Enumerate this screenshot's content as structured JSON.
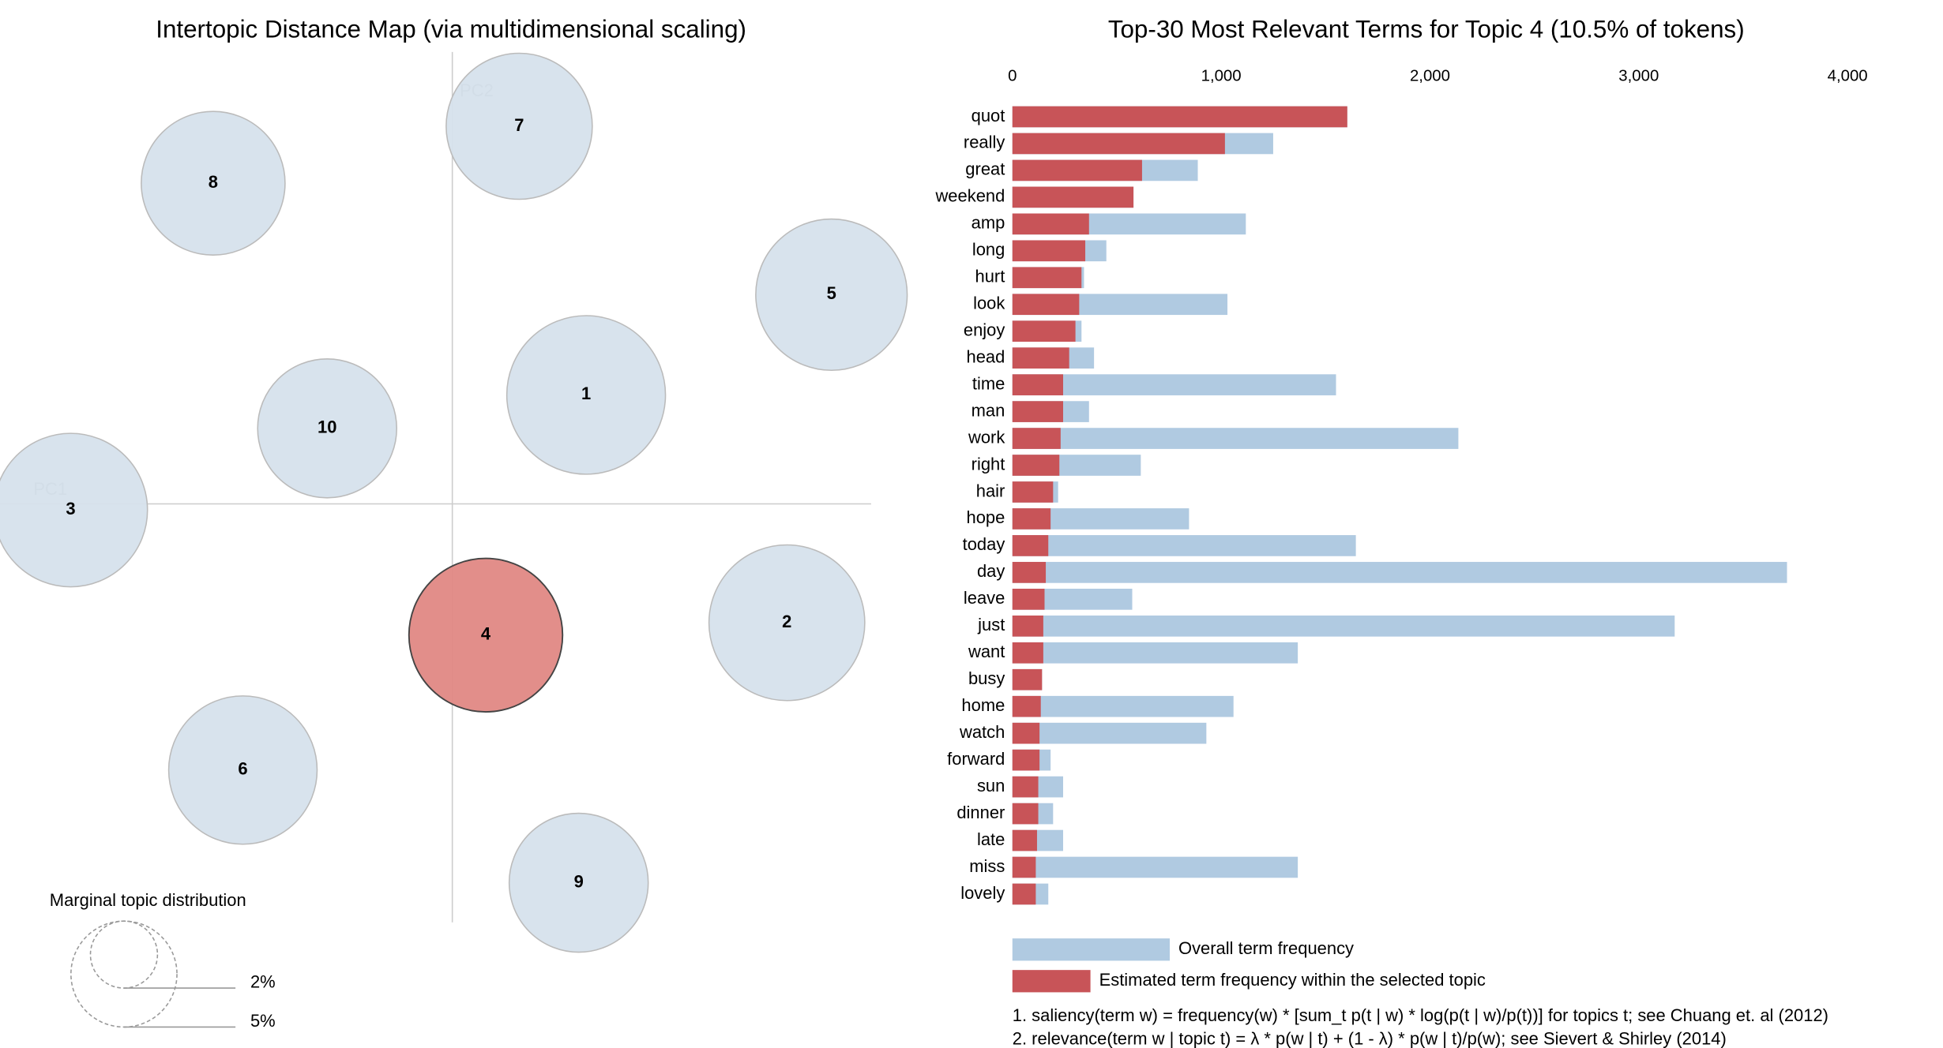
{
  "chart_data": [
    {
      "type": "scatter",
      "title": "Intertopic Distance Map (via multidimensional scaling)",
      "x_label": "PC1",
      "y_label": "PC2",
      "labels": [
        "7",
        "8",
        "5",
        "1",
        "10",
        "3",
        "4",
        "2",
        "6",
        "9"
      ],
      "x": [
        0.54,
        -1.93,
        3.06,
        1.08,
        -1.01,
        -3.08,
        0.27,
        2.7,
        -1.69,
        1.02
      ],
      "y": [
        3.05,
        2.59,
        1.69,
        0.88,
        0.61,
        -0.05,
        -1.06,
        -0.96,
        -2.15,
        -3.06
      ],
      "sizes": [
        9.5,
        9.2,
        10.2,
        11.2,
        8.6,
        10.5,
        10.5,
        10.8,
        9.8,
        8.6
      ],
      "colors": [
        "#d6e1ec",
        "#d6e1ec",
        "#d6e1ec",
        "#d6e1ec",
        "#d6e1ec",
        "#d6e1ec",
        "#e08884",
        "#d6e1ec",
        "#d6e1ec",
        "#d6e1ec"
      ],
      "xlim": [
        -3.65,
        3.38
      ],
      "ylim": [
        -3.38,
        3.65
      ],
      "size_legend": {
        "title": "Marginal topic distribution",
        "ticks": [
          {
            "value": 2,
            "label": "2%"
          },
          {
            "value": 5,
            "label": "5%"
          }
        ]
      }
    },
    {
      "type": "bar",
      "orientation": "horizontal",
      "title": "Top-30 Most Relevant Terms for Topic 4 (10.5% of tokens)",
      "categories": [
        "quot",
        "really",
        "great",
        "weekend",
        "amp",
        "long",
        "hurt",
        "look",
        "enjoy",
        "head",
        "time",
        "man",
        "work",
        "right",
        "hair",
        "hope",
        "today",
        "day",
        "leave",
        "just",
        "want",
        "busy",
        "home",
        "watch",
        "forward",
        "sun",
        "dinner",
        "late",
        "miss",
        "lovely"
      ],
      "series": [
        {
          "name": "Overall term frequency",
          "color": "#b0cae1",
          "values": [
            1604,
            1249,
            888,
            580,
            1118,
            450,
            343,
            1030,
            331,
            391,
            1550,
            367,
            2136,
            615,
            219,
            846,
            1645,
            3710,
            574,
            3172,
            1367,
            142,
            1059,
            929,
            183,
            243,
            195,
            243,
            1367,
            172
          ]
        },
        {
          "name": "Estimated term frequency within the selected topic",
          "color": "#c85458",
          "values": [
            1604,
            1018,
            621,
            580,
            367,
            349,
            331,
            320,
            302,
            272,
            243,
            243,
            231,
            225,
            195,
            183,
            172,
            160,
            154,
            148,
            148,
            142,
            136,
            130,
            130,
            124,
            124,
            118,
            112,
            112
          ]
        }
      ],
      "xlim": [
        0,
        4000
      ],
      "xticks": [
        0,
        {
          "value": 1000,
          "label": "1,000"
        },
        {
          "value": 2000,
          "label": "2,000"
        },
        {
          "value": 3000,
          "label": "3,000"
        },
        {
          "value": 4000,
          "label": "4,000"
        }
      ],
      "notes": [
        "1. saliency(term w) = frequency(w) * [sum_t p(t | w) * log(p(t | w)/p(t))] for topics t; see Chuang et. al (2012)",
        "2. relevance(term w | topic t) = λ * p(w | t) + (1 - λ) * p(w | t)/p(w); see Sievert & Shirley (2014)"
      ]
    }
  ]
}
